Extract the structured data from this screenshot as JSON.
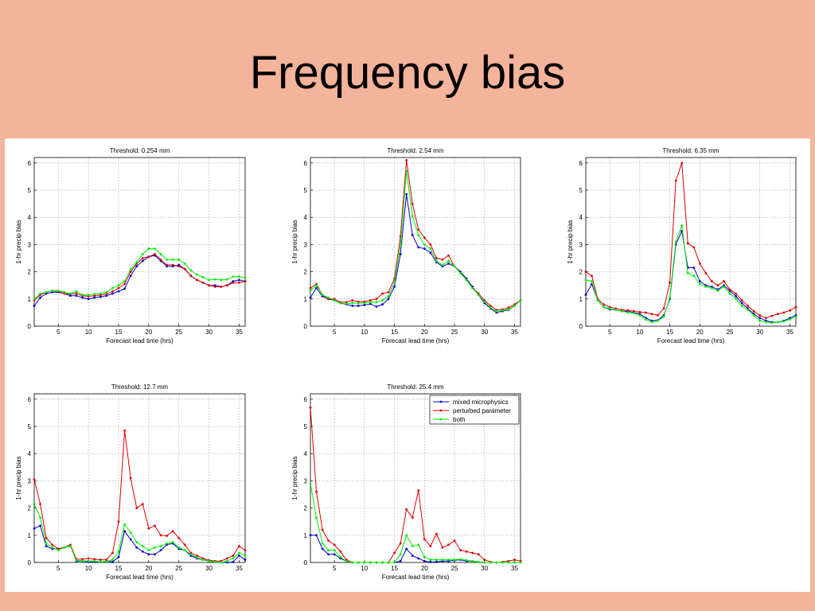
{
  "slide": {
    "title": "Frequency bias"
  },
  "colors": {
    "background": "#f4b39b",
    "mixed_microphysics": "#0000cc",
    "perturbed_parameter": "#dd0000",
    "both": "#00ee00"
  },
  "legend": {
    "entries": [
      "mixed microphysics",
      "perturbed parameter",
      "both"
    ],
    "placement": "top-right of Threshold: 25.4 mm panel"
  },
  "chart_data": [
    {
      "type": "line",
      "title": "Threshold: 0.254 mm",
      "xlabel": "Forecast lead time (hrs)",
      "ylabel": "1-hr precip bias",
      "xlim": [
        1,
        36
      ],
      "ylim": [
        0,
        6.2
      ],
      "xticks": [
        5,
        10,
        15,
        20,
        25,
        30,
        35
      ],
      "yticks": [
        0,
        1,
        2,
        3,
        4,
        5,
        6
      ],
      "grid": true,
      "x": [
        1,
        2,
        3,
        4,
        5,
        6,
        7,
        8,
        9,
        10,
        11,
        12,
        13,
        14,
        15,
        16,
        17,
        18,
        19,
        20,
        21,
        22,
        23,
        24,
        25,
        26,
        27,
        28,
        29,
        30,
        31,
        32,
        33,
        34,
        35,
        36
      ],
      "series": [
        {
          "name": "mixed microphysics",
          "values": [
            0.75,
            1.05,
            1.2,
            1.25,
            1.25,
            1.2,
            1.12,
            1.12,
            1.05,
            1.0,
            1.05,
            1.08,
            1.12,
            1.2,
            1.28,
            1.38,
            1.85,
            2.2,
            2.4,
            2.55,
            2.6,
            2.4,
            2.2,
            2.2,
            2.25,
            2.1,
            1.85,
            1.7,
            1.6,
            1.5,
            1.5,
            1.45,
            1.5,
            1.65,
            1.7,
            1.65
          ]
        },
        {
          "name": "perturbed parameter",
          "values": [
            0.95,
            1.15,
            1.25,
            1.3,
            1.28,
            1.2,
            1.18,
            1.2,
            1.12,
            1.1,
            1.12,
            1.15,
            1.18,
            1.28,
            1.4,
            1.55,
            2.0,
            2.3,
            2.5,
            2.55,
            2.65,
            2.45,
            2.25,
            2.25,
            2.2,
            2.1,
            1.85,
            1.7,
            1.6,
            1.5,
            1.45,
            1.45,
            1.5,
            1.6,
            1.6,
            1.65
          ]
        },
        {
          "name": "both",
          "values": [
            1.0,
            1.2,
            1.25,
            1.3,
            1.3,
            1.25,
            1.2,
            1.28,
            1.15,
            1.15,
            1.18,
            1.2,
            1.25,
            1.4,
            1.5,
            1.65,
            2.1,
            2.35,
            2.65,
            2.85,
            2.85,
            2.65,
            2.45,
            2.45,
            2.45,
            2.3,
            2.05,
            1.9,
            1.8,
            1.7,
            1.72,
            1.7,
            1.72,
            1.82,
            1.82,
            1.78
          ]
        }
      ]
    },
    {
      "type": "line",
      "title": "Threshold: 2.54 mm",
      "xlabel": "Forecast lead time (hrs)",
      "ylabel": "1-hr precip bias",
      "xlim": [
        1,
        36
      ],
      "ylim": [
        0,
        6.2
      ],
      "xticks": [
        5,
        10,
        15,
        20,
        25,
        30,
        35
      ],
      "yticks": [
        0,
        1,
        2,
        3,
        4,
        5,
        6
      ],
      "grid": true,
      "x": [
        1,
        2,
        3,
        4,
        5,
        6,
        7,
        8,
        9,
        10,
        11,
        12,
        13,
        14,
        15,
        16,
        17,
        18,
        19,
        20,
        21,
        22,
        23,
        24,
        25,
        26,
        27,
        28,
        29,
        30,
        31,
        32,
        33,
        34,
        35,
        36
      ],
      "series": [
        {
          "name": "mixed microphysics",
          "values": [
            1.05,
            1.4,
            1.1,
            1.0,
            0.95,
            0.85,
            0.8,
            0.75,
            0.75,
            0.78,
            0.82,
            0.72,
            0.8,
            1.0,
            1.45,
            2.65,
            4.85,
            3.35,
            2.9,
            2.85,
            2.7,
            2.35,
            2.2,
            2.3,
            2.2,
            2.0,
            1.75,
            1.45,
            1.15,
            0.85,
            0.65,
            0.5,
            0.55,
            0.6,
            0.75,
            0.95
          ]
        },
        {
          "name": "perturbed parameter",
          "values": [
            1.4,
            1.55,
            1.15,
            1.0,
            1.0,
            0.88,
            0.88,
            0.95,
            0.9,
            0.9,
            0.95,
            1.0,
            1.2,
            1.25,
            1.75,
            3.3,
            6.1,
            4.5,
            3.55,
            3.25,
            3.0,
            2.5,
            2.45,
            2.6,
            2.2,
            1.95,
            1.7,
            1.4,
            1.2,
            0.95,
            0.75,
            0.6,
            0.62,
            0.68,
            0.8,
            0.95
          ]
        },
        {
          "name": "both",
          "values": [
            1.3,
            1.5,
            1.15,
            1.05,
            0.95,
            0.85,
            0.82,
            0.85,
            0.85,
            0.85,
            0.88,
            0.88,
            0.95,
            1.1,
            1.6,
            3.0,
            5.7,
            4.05,
            3.35,
            3.0,
            2.85,
            2.4,
            2.25,
            2.4,
            2.2,
            1.95,
            1.7,
            1.4,
            1.15,
            0.9,
            0.68,
            0.55,
            0.58,
            0.62,
            0.75,
            0.95
          ]
        }
      ]
    },
    {
      "type": "line",
      "title": "Threshold: 6.35 mm",
      "xlabel": "Forecast lead time (hrs)",
      "ylabel": "1-hr precip bias",
      "xlim": [
        1,
        36
      ],
      "ylim": [
        0,
        6.2
      ],
      "xticks": [
        5,
        10,
        15,
        20,
        25,
        30,
        35
      ],
      "yticks": [
        0,
        1,
        2,
        3,
        4,
        5,
        6
      ],
      "grid": true,
      "x": [
        1,
        2,
        3,
        4,
        5,
        6,
        7,
        8,
        9,
        10,
        11,
        12,
        13,
        14,
        15,
        16,
        17,
        18,
        19,
        20,
        21,
        22,
        23,
        24,
        25,
        26,
        27,
        28,
        29,
        30,
        31,
        32,
        33,
        34,
        35,
        36
      ],
      "series": [
        {
          "name": "mixed microphysics",
          "values": [
            1.15,
            1.55,
            0.95,
            0.7,
            0.62,
            0.6,
            0.55,
            0.55,
            0.5,
            0.45,
            0.3,
            0.2,
            0.22,
            0.4,
            1.0,
            3.0,
            3.5,
            2.15,
            2.15,
            1.65,
            1.5,
            1.45,
            1.35,
            1.5,
            1.3,
            1.1,
            0.85,
            0.65,
            0.45,
            0.3,
            0.2,
            0.15,
            0.15,
            0.2,
            0.3,
            0.4
          ]
        },
        {
          "name": "perturbed parameter",
          "values": [
            2.0,
            1.85,
            1.0,
            0.8,
            0.7,
            0.65,
            0.6,
            0.58,
            0.55,
            0.52,
            0.5,
            0.45,
            0.4,
            0.65,
            1.6,
            5.35,
            6.0,
            3.05,
            2.9,
            2.3,
            1.95,
            1.65,
            1.5,
            1.65,
            1.35,
            1.2,
            0.95,
            0.75,
            0.55,
            0.4,
            0.3,
            0.38,
            0.45,
            0.5,
            0.58,
            0.7
          ]
        },
        {
          "name": "both",
          "values": [
            1.7,
            1.65,
            0.95,
            0.7,
            0.65,
            0.6,
            0.55,
            0.5,
            0.48,
            0.4,
            0.25,
            0.15,
            0.2,
            0.35,
            1.05,
            3.1,
            3.7,
            1.95,
            1.85,
            1.55,
            1.45,
            1.4,
            1.3,
            1.45,
            1.2,
            1.0,
            0.75,
            0.6,
            0.4,
            0.2,
            0.15,
            0.12,
            0.15,
            0.18,
            0.25,
            0.35
          ]
        }
      ]
    },
    {
      "type": "line",
      "title": "Threshold: 12.7 mm",
      "xlabel": "Forecast lead time (hrs)",
      "ylabel": "1-hr precip bias",
      "xlim": [
        1,
        36
      ],
      "ylim": [
        0,
        6.2
      ],
      "xticks": [
        5,
        10,
        15,
        20,
        25,
        30,
        35
      ],
      "yticks": [
        0,
        1,
        2,
        3,
        4,
        5,
        6
      ],
      "grid": true,
      "x": [
        1,
        2,
        3,
        4,
        5,
        6,
        7,
        8,
        9,
        10,
        11,
        12,
        13,
        14,
        15,
        16,
        17,
        18,
        19,
        20,
        21,
        22,
        23,
        24,
        25,
        26,
        27,
        28,
        29,
        30,
        31,
        32,
        33,
        34,
        35,
        36
      ],
      "series": [
        {
          "name": "mixed microphysics",
          "values": [
            1.25,
            1.35,
            0.6,
            0.5,
            0.5,
            0.55,
            0.62,
            0.05,
            0.05,
            0.02,
            0.02,
            0.01,
            0.05,
            0.02,
            0.2,
            1.15,
            0.85,
            0.55,
            0.4,
            0.3,
            0.3,
            0.45,
            0.65,
            0.7,
            0.5,
            0.45,
            0.25,
            0.15,
            0.1,
            0.05,
            0.02,
            0.0,
            0.0,
            0.02,
            0.25,
            0.1
          ]
        },
        {
          "name": "perturbed parameter",
          "values": [
            3.05,
            2.15,
            0.9,
            0.65,
            0.5,
            0.55,
            0.65,
            0.12,
            0.12,
            0.15,
            0.12,
            0.1,
            0.1,
            0.35,
            1.5,
            4.85,
            3.1,
            2.0,
            2.15,
            1.25,
            1.35,
            1.0,
            0.98,
            1.15,
            0.9,
            0.65,
            0.35,
            0.25,
            0.15,
            0.08,
            0.05,
            0.05,
            0.15,
            0.25,
            0.6,
            0.45
          ]
        },
        {
          "name": "both",
          "values": [
            2.15,
            1.65,
            0.7,
            0.55,
            0.45,
            0.55,
            0.6,
            0.08,
            0.06,
            0.05,
            0.05,
            0.02,
            0.04,
            0.1,
            0.4,
            1.4,
            1.1,
            0.75,
            0.6,
            0.45,
            0.55,
            0.6,
            0.7,
            0.75,
            0.55,
            0.45,
            0.3,
            0.18,
            0.1,
            0.05,
            0.02,
            0.0,
            0.05,
            0.15,
            0.35,
            0.25
          ]
        }
      ]
    },
    {
      "type": "line",
      "title": "Threshold: 25.4 mm",
      "xlabel": "Forecast lead time (hrs)",
      "ylabel": "1-hr precip bias",
      "xlim": [
        1,
        36
      ],
      "ylim": [
        0,
        6.2
      ],
      "xticks": [
        5,
        10,
        15,
        20,
        25,
        30,
        35
      ],
      "yticks": [
        0,
        1,
        2,
        3,
        4,
        5,
        6
      ],
      "grid": true,
      "x": [
        1,
        2,
        3,
        4,
        5,
        6,
        7,
        8,
        9,
        10,
        11,
        12,
        13,
        14,
        15,
        16,
        17,
        18,
        19,
        20,
        21,
        22,
        23,
        24,
        25,
        26,
        27,
        28,
        29,
        30,
        31,
        32,
        33,
        34,
        35,
        36
      ],
      "series": [
        {
          "name": "mixed microphysics",
          "values": [
            1.0,
            1.0,
            0.5,
            0.3,
            0.3,
            0.15,
            0.05,
            0.0,
            0.0,
            0.0,
            0.0,
            0.0,
            0.0,
            0.0,
            0.0,
            0.05,
            0.5,
            0.25,
            0.15,
            0.05,
            0.02,
            0.02,
            0.05,
            0.05,
            0.08,
            0.1,
            0.05,
            0.05,
            0.02,
            0.0,
            0.0,
            0.0,
            0.0,
            0.0,
            0.0,
            0.0
          ]
        },
        {
          "name": "perturbed parameter",
          "values": [
            5.7,
            2.6,
            1.2,
            0.8,
            0.65,
            0.4,
            0.1,
            0.0,
            0.0,
            0.0,
            0.0,
            0.0,
            0.0,
            0.0,
            0.35,
            0.7,
            1.95,
            1.65,
            2.65,
            0.85,
            0.6,
            1.05,
            0.55,
            0.65,
            0.8,
            0.45,
            0.4,
            0.35,
            0.3,
            0.1,
            0.02,
            0.0,
            0.02,
            0.05,
            0.1,
            0.05
          ]
        },
        {
          "name": "both",
          "values": [
            2.9,
            1.65,
            0.7,
            0.45,
            0.45,
            0.2,
            0.05,
            0.0,
            0.0,
            0.0,
            0.0,
            0.0,
            0.0,
            0.0,
            0.0,
            0.3,
            1.0,
            0.6,
            0.65,
            0.2,
            0.1,
            0.1,
            0.1,
            0.1,
            0.1,
            0.12,
            0.08,
            0.05,
            0.02,
            0.0,
            0.0,
            0.0,
            0.0,
            0.0,
            0.0,
            0.0
          ]
        }
      ]
    }
  ]
}
